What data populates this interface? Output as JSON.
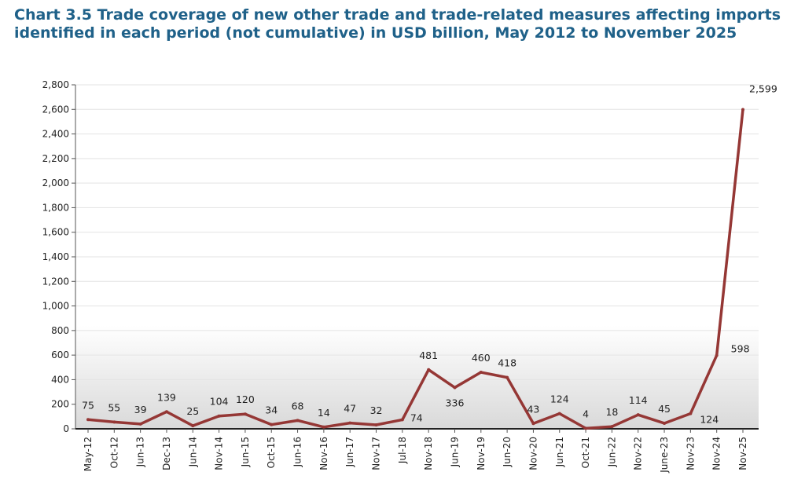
{
  "chart_data": {
    "type": "line",
    "title": "Chart 3.5 Trade coverage of new other trade and trade-related measures affecting imports identified in each period (not cumulative) in USD billion, May 2012 to November 2025",
    "xlabel": "",
    "ylabel": "",
    "categories": [
      "May-12",
      "Oct-12",
      "Jun-13",
      "Dec-13",
      "Jun-14",
      "Nov-14",
      "Jun-15",
      "Oct-15",
      "Jun-16",
      "Nov-16",
      "Jun-17",
      "Nov-17",
      "Jul-18",
      "Nov-18",
      "Jun-19",
      "Nov-19",
      "Jun-20",
      "Nov-20",
      "Jun-21",
      "Oct-21",
      "Jun-22",
      "Nov-22",
      "June-23",
      "Nov-23",
      "Nov-24",
      "Nov-25"
    ],
    "values": [
      75,
      55,
      39,
      139,
      25,
      104,
      120,
      34,
      68,
      14,
      47,
      32,
      74,
      481,
      336,
      460,
      418,
      43,
      124,
      4,
      18,
      114,
      45,
      124,
      598,
      2599
    ],
    "data_labels": [
      "75",
      "55",
      "39",
      "139",
      "25",
      "104",
      "120",
      "34",
      "68",
      "14",
      "47",
      "32",
      "74",
      "481",
      "336",
      "460",
      "418",
      "43",
      "124",
      "4",
      "18",
      "114",
      "45",
      "124",
      "598",
      "2,599"
    ],
    "ylim": [
      0,
      2800
    ],
    "yticks": [
      "0",
      "200",
      "400",
      "600",
      "800",
      "1,000",
      "1,200",
      "1,400",
      "1,600",
      "1,800",
      "2,000",
      "2,200",
      "2,400",
      "2,600",
      "2,800"
    ],
    "grid": true,
    "legend": "none",
    "line_color": "#953735",
    "title_color": "#1f6189"
  }
}
